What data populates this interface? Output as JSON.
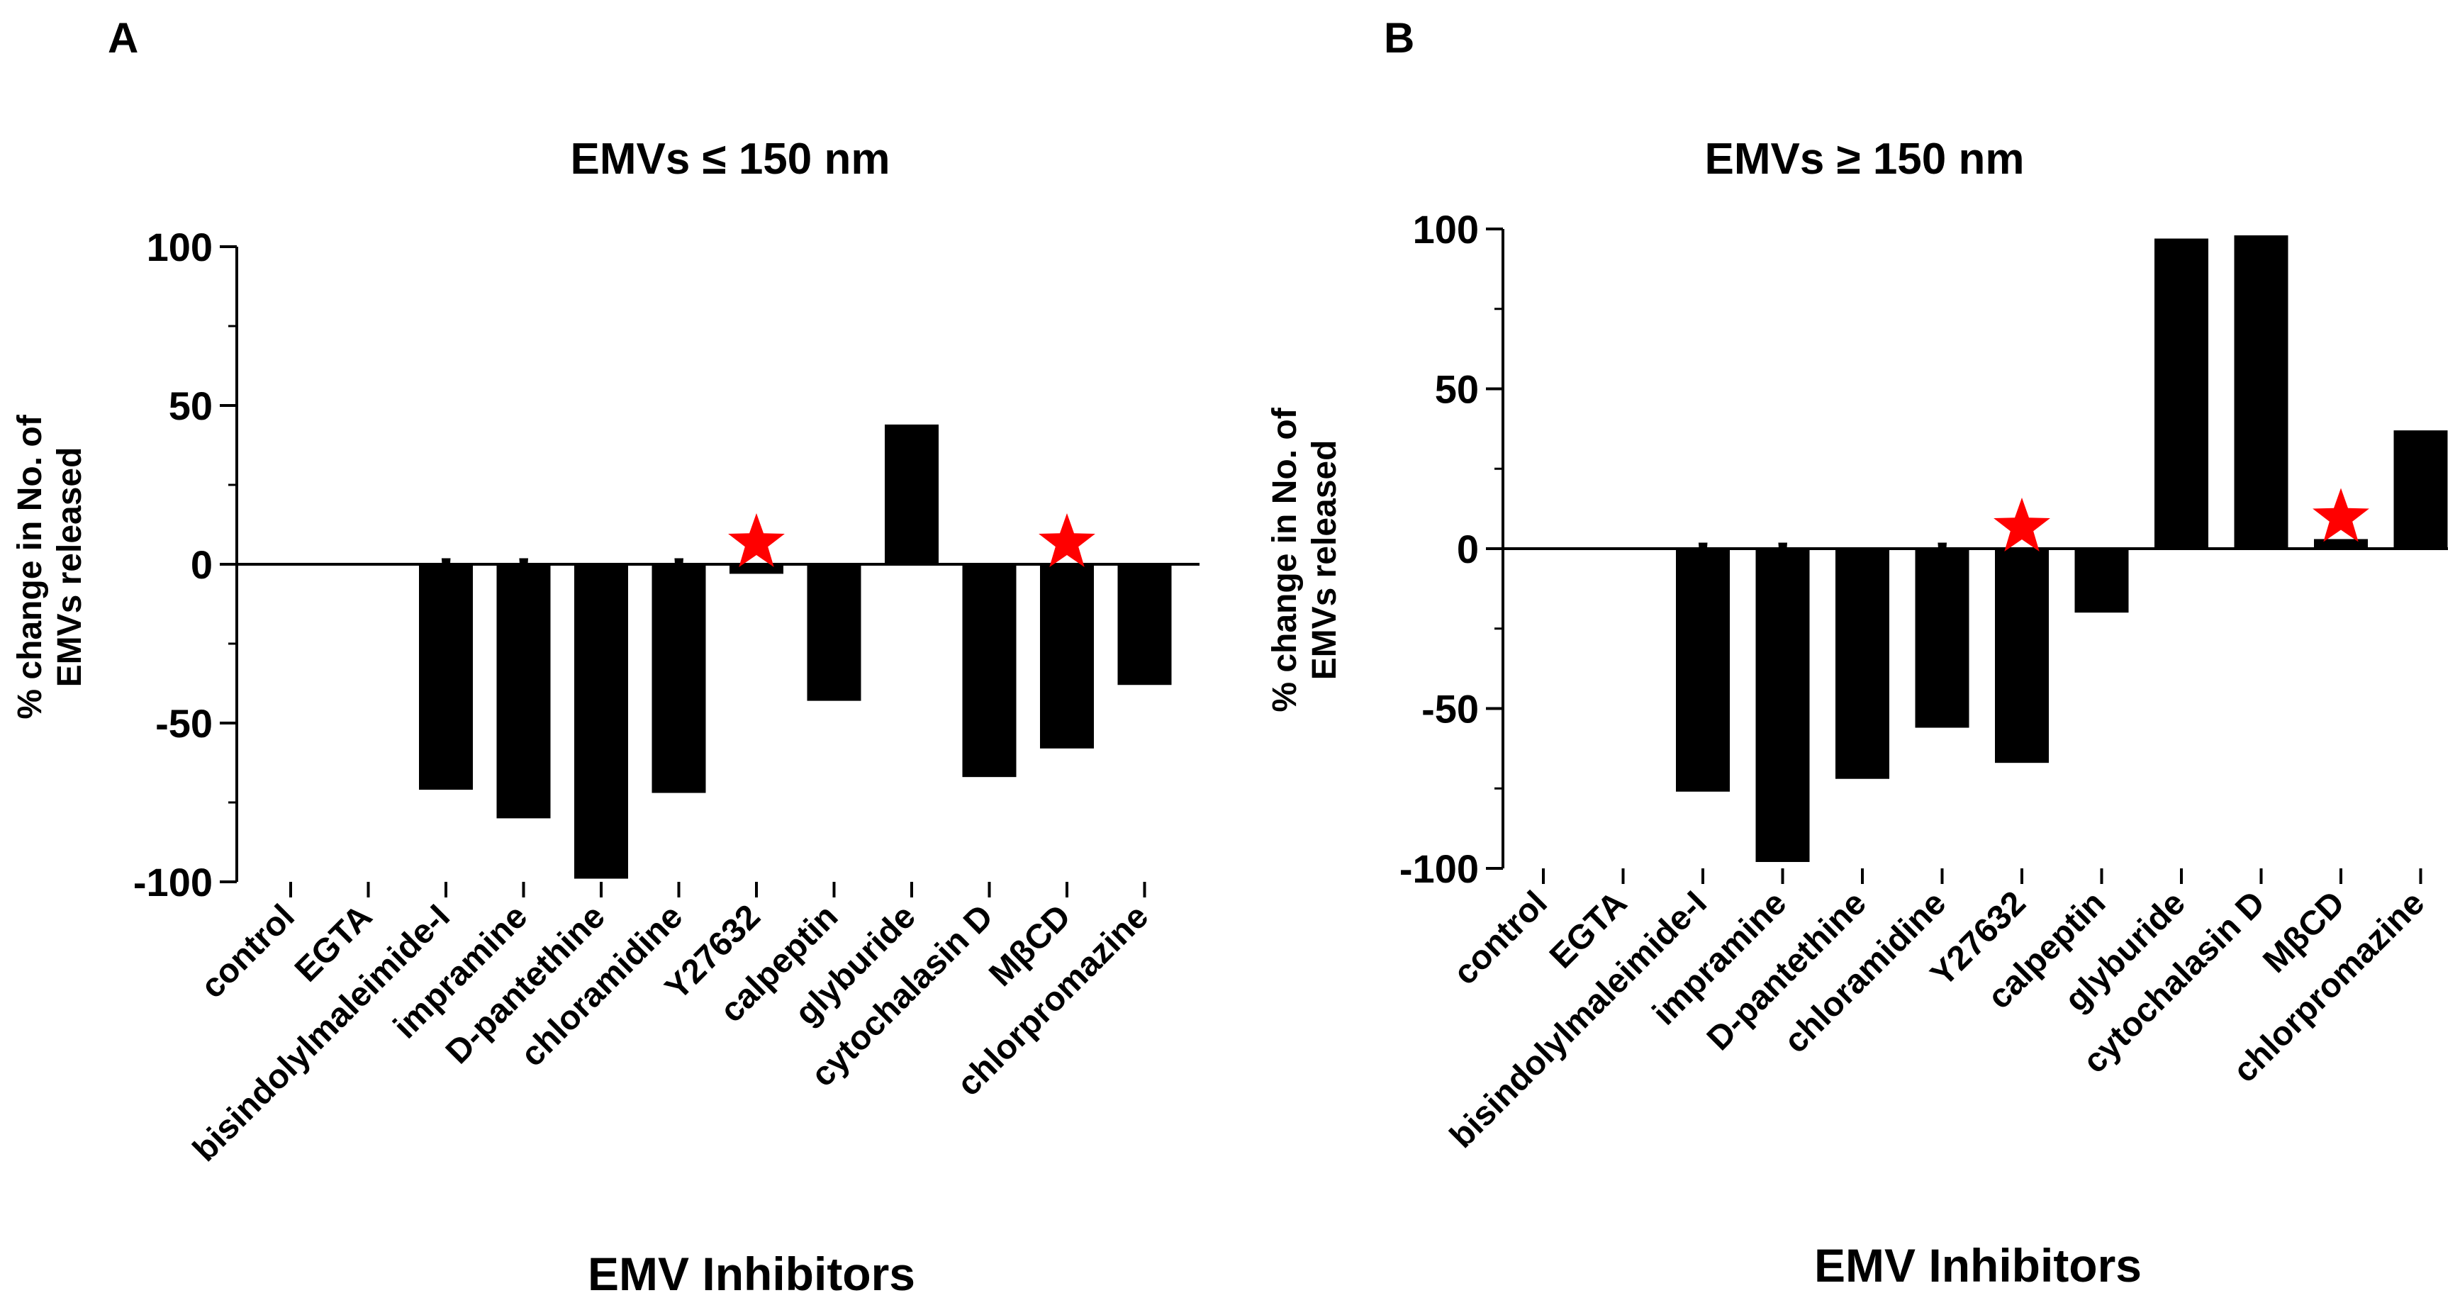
{
  "chart_data": [
    {
      "panel": "A",
      "type": "bar",
      "title": "EMVs ≤ 150 nm",
      "xlabel": "EMV Inhibitors",
      "ylabel": [
        "% change in No. of",
        "EMVs released"
      ],
      "ylim": [
        -100,
        100
      ],
      "yticks": [
        "100",
        "50",
        "0",
        "-50",
        "-100"
      ],
      "categories": [
        "control",
        "EGTA",
        "bisindolylmaleimide-I",
        "impramine",
        "D-pantethine",
        "chloramidine",
        "Y27632",
        "calpeptin",
        "glyburide",
        "cytochalasin D",
        "MβCD",
        "chlorpromazine"
      ],
      "values": [
        0,
        0,
        -71,
        -80,
        -99,
        -72,
        -3,
        -43,
        44,
        -67,
        -58,
        -38
      ],
      "annotations": [
        "",
        "",
        "*",
        "*",
        "",
        "*",
        "red-star",
        "",
        "",
        "",
        "red-star",
        ""
      ]
    },
    {
      "panel": "B",
      "type": "bar",
      "title": "EMVs ≥ 150 nm",
      "xlabel": "EMV Inhibitors",
      "ylabel": [
        "% change in No. of",
        "EMVs released"
      ],
      "ylim": [
        -100,
        100
      ],
      "yticks": [
        "100",
        "50",
        "0",
        "-50",
        "-100"
      ],
      "categories": [
        "control",
        "EGTA",
        "bisindolylmaleimide-I",
        "impramine",
        "D-pantethine",
        "chloramidine",
        "Y27632",
        "calpeptin",
        "glyburide",
        "cytochalasin D",
        "MβCD",
        "chlorpromazine"
      ],
      "values": [
        0,
        0,
        -76,
        -98,
        -72,
        -56,
        -67,
        -20,
        97,
        98,
        3,
        37
      ],
      "annotations": [
        "",
        "",
        "*",
        "*",
        "",
        "*",
        "red-star",
        "",
        "",
        "",
        "red-star",
        ""
      ]
    }
  ]
}
